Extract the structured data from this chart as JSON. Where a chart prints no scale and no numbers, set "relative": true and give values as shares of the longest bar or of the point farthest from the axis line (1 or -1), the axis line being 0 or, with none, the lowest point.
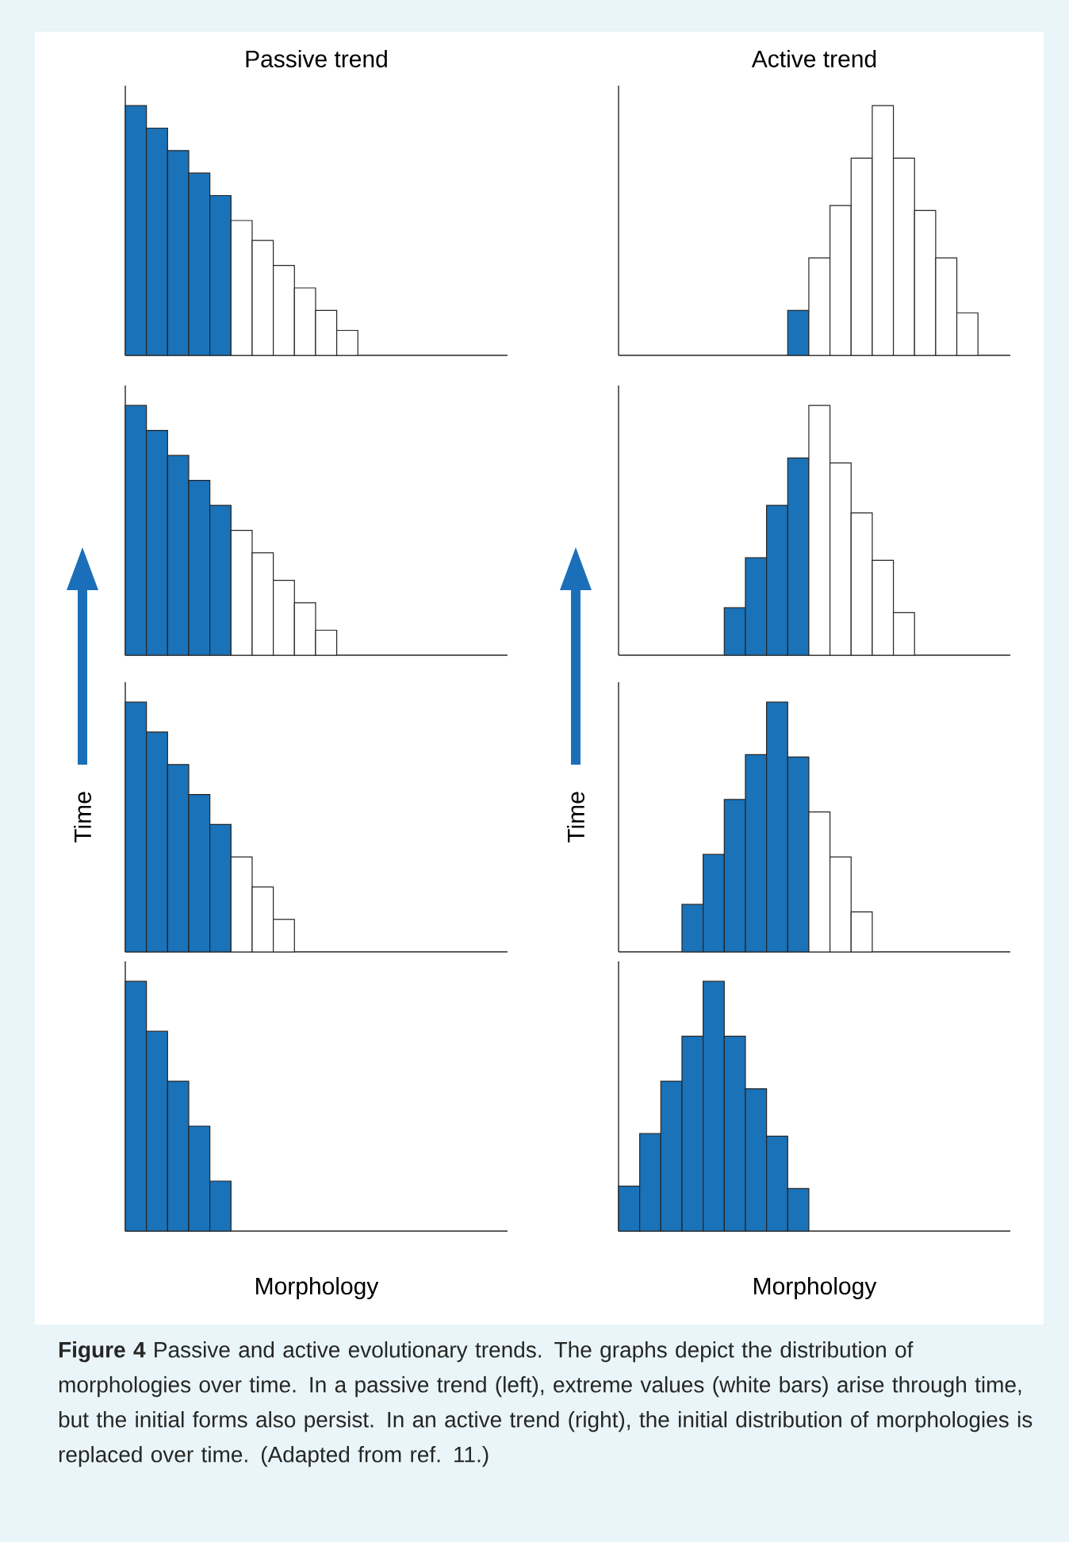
{
  "chart_data": [
    {
      "type": "bar",
      "relative": true,
      "title": "Passive trend",
      "annotations": [
        "**Figure 4** Passive and active evolutionary trends. The graphs depict the distribution of morphologies over time. In a passive trend (left), extreme values (white bars) arise through time, but the initial forms also persist. In an active trend (right), the initial distribution of morphologies is replaced over time. (Adapted from ref. 11.)"
      ],
      "categories": [
        null,
        null,
        null,
        null,
        null,
        null,
        null,
        null,
        null,
        null,
        null
      ],
      "values": [
        1,
        0.91,
        0.82,
        0.73,
        0.64,
        0.54,
        0.46,
        0.36,
        0.27,
        0.18,
        0.1
      ],
      "colors": [
        "#1a72b8",
        "#1a72b8",
        "#1a72b8",
        "#1a72b8",
        "#1a72b8",
        "#ffffff",
        "#ffffff",
        "#ffffff",
        "#ffffff",
        "#ffffff",
        "#ffffff"
      ]
    },
    {
      "type": "bar",
      "relative": true,
      "title": "Active trend",
      "categories": [
        null,
        null,
        null,
        null,
        null,
        null,
        null,
        null,
        null
      ],
      "values": [
        0.18,
        0.39,
        0.6,
        0.79,
        1,
        0.79,
        0.58,
        0.39,
        0.17
      ],
      "colors": [
        "#1a72b8",
        "#ffffff",
        "#ffffff",
        "#ffffff",
        "#ffffff",
        "#ffffff",
        "#ffffff",
        "#ffffff",
        "#ffffff"
      ]
    },
    {
      "type": "bar",
      "relative": true,
      "categories": [
        null,
        null,
        null,
        null,
        null,
        null,
        null,
        null,
        null,
        null
      ],
      "values": [
        1,
        0.9,
        0.8,
        0.7,
        0.6,
        0.5,
        0.41,
        0.3,
        0.21,
        0.1
      ],
      "colors": [
        "#1a72b8",
        "#1a72b8",
        "#1a72b8",
        "#1a72b8",
        "#1a72b8",
        "#ffffff",
        "#ffffff",
        "#ffffff",
        "#ffffff",
        "#ffffff"
      ]
    },
    {
      "type": "bar",
      "relative": true,
      "categories": [
        null,
        null,
        null,
        null,
        null,
        null,
        null,
        null,
        null
      ],
      "values": [
        0.19,
        0.39,
        0.6,
        0.79,
        1,
        0.77,
        0.57,
        0.38,
        0.17
      ],
      "colors": [
        "#1a72b8",
        "#1a72b8",
        "#1a72b8",
        "#1a72b8",
        "#ffffff",
        "#ffffff",
        "#ffffff",
        "#ffffff",
        "#ffffff"
      ]
    },
    {
      "type": "bar",
      "relative": true,
      "ylabel": "Time",
      "categories": [
        null,
        null,
        null,
        null,
        null,
        null,
        null,
        null
      ],
      "values": [
        1,
        0.88,
        0.75,
        0.63,
        0.51,
        0.38,
        0.26,
        0.13
      ],
      "colors": [
        "#1a72b8",
        "#1a72b8",
        "#1a72b8",
        "#1a72b8",
        "#1a72b8",
        "#ffffff",
        "#ffffff",
        "#ffffff"
      ]
    },
    {
      "type": "bar",
      "relative": true,
      "ylabel": "Time",
      "categories": [
        null,
        null,
        null,
        null,
        null,
        null,
        null,
        null,
        null
      ],
      "values": [
        0.19,
        0.39,
        0.61,
        0.79,
        1,
        0.78,
        0.56,
        0.38,
        0.16
      ],
      "colors": [
        "#1a72b8",
        "#1a72b8",
        "#1a72b8",
        "#1a72b8",
        "#1a72b8",
        "#1a72b8",
        "#ffffff",
        "#ffffff",
        "#ffffff"
      ]
    },
    {
      "type": "bar",
      "relative": true,
      "xlabel": "Morphology",
      "categories": [
        null,
        null,
        null,
        null,
        null
      ],
      "values": [
        1,
        0.8,
        0.6,
        0.42,
        0.2
      ],
      "colors": [
        "#1a72b8",
        "#1a72b8",
        "#1a72b8",
        "#1a72b8",
        "#1a72b8"
      ]
    },
    {
      "type": "bar",
      "relative": true,
      "xlabel": "Morphology",
      "categories": [
        null,
        null,
        null,
        null,
        null,
        null,
        null,
        null,
        null
      ],
      "values": [
        0.18,
        0.39,
        0.6,
        0.78,
        1,
        0.78,
        0.57,
        0.38,
        0.17
      ],
      "colors": [
        "#1a72b8",
        "#1a72b8",
        "#1a72b8",
        "#1a72b8",
        "#1a72b8",
        "#1a72b8",
        "#1a72b8",
        "#1a72b8",
        "#1a72b8"
      ]
    }
  ]
}
